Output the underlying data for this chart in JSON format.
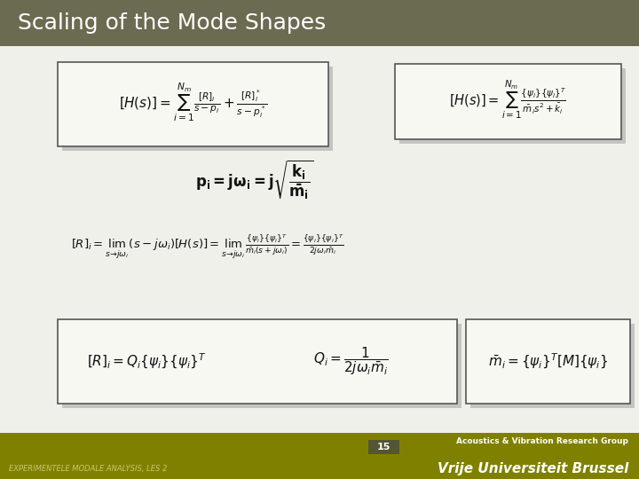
{
  "title": "Scaling of the Mode Shapes",
  "title_bg_color": "#6b6b52",
  "title_text_color": "#ffffff",
  "slide_bg_color": "#ffffff",
  "content_bg_color": "#f5f5f5",
  "footer_bg_color": "#808000",
  "footer_text_color": "#ffffff",
  "page_number": "15",
  "page_num_bg": "#5a5a30",
  "footer_left": "EXPERIMENTELE MODALE ANALYSIS, LES 2",
  "footer_right_top": "Acoustics & Vibration Research Group",
  "footer_right_bottom": "Vrije Universiteit Brussel",
  "text_color": "#1a1a1a",
  "box_edge_color": "#555555",
  "shadow_color": "#999999"
}
